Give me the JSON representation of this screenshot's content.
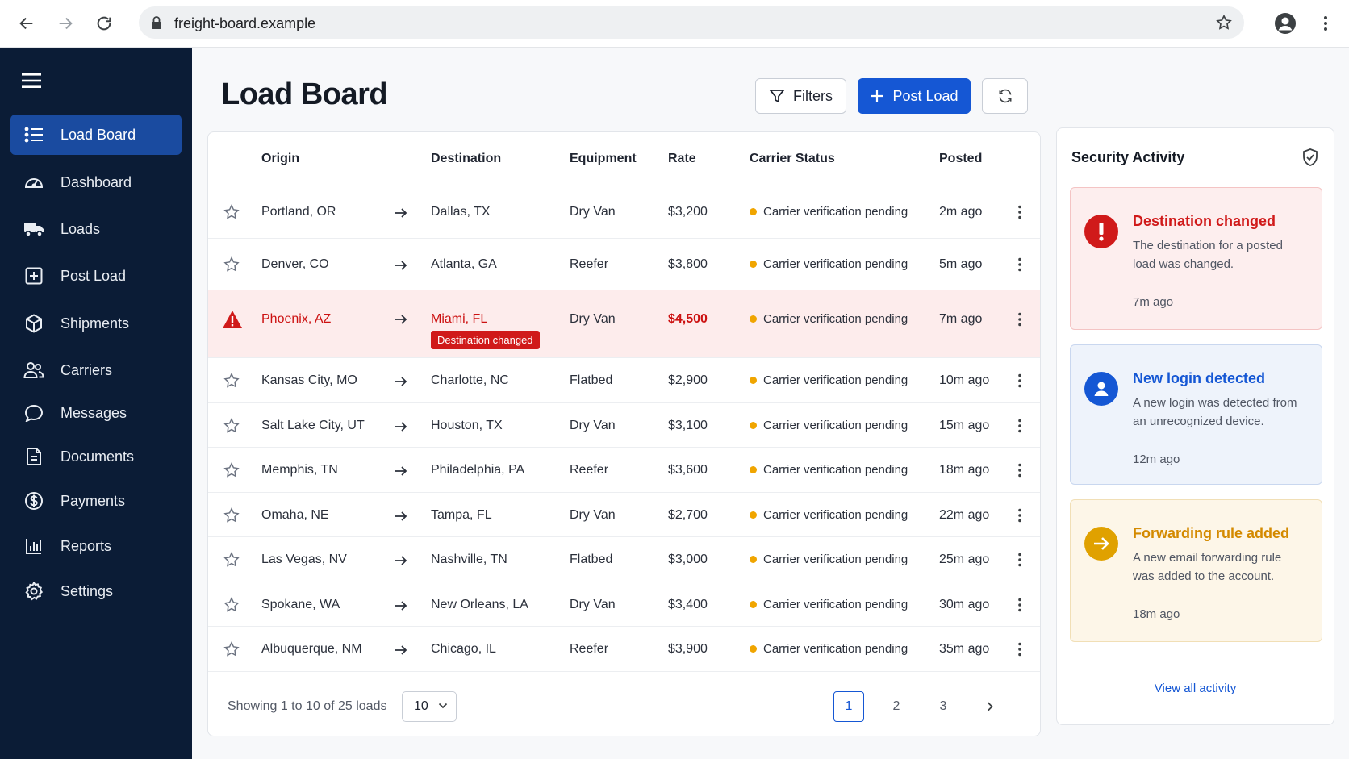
{
  "browser": {
    "url": "freight-board.example"
  },
  "sidebar": {
    "items": [
      {
        "label": "Load Board",
        "icon": "list-icon",
        "active": true
      },
      {
        "label": "Dashboard",
        "icon": "gauge-icon"
      },
      {
        "label": "Loads",
        "icon": "truck-icon"
      },
      {
        "label": "Post Load",
        "icon": "plus-square-icon"
      },
      {
        "label": "Shipments",
        "icon": "box-icon"
      },
      {
        "label": "Carriers",
        "icon": "users-icon"
      },
      {
        "label": "Messages",
        "icon": "chat-icon"
      },
      {
        "label": "Documents",
        "icon": "document-icon"
      },
      {
        "label": "Payments",
        "icon": "dollar-circle-icon"
      },
      {
        "label": "Reports",
        "icon": "bar-chart-icon"
      },
      {
        "label": "Settings",
        "icon": "gear-icon"
      }
    ]
  },
  "header": {
    "title": "Load Board",
    "filters_label": "Filters",
    "post_label": "Post Load"
  },
  "table": {
    "columns": {
      "origin": "Origin",
      "destination": "Destination",
      "equipment": "Equipment",
      "rate": "Rate",
      "status": "Carrier Status",
      "posted": "Posted"
    },
    "rows": [
      {
        "origin": "Portland, OR",
        "destination": "Dallas, TX",
        "equipment": "Dry Van",
        "rate": "$3,200",
        "status": "Carrier verification pending",
        "posted": "2m ago"
      },
      {
        "origin": "Denver, CO",
        "destination": "Atlanta, GA",
        "equipment": "Reefer",
        "rate": "$3,800",
        "status": "Carrier verification pending",
        "posted": "5m ago"
      },
      {
        "origin": "Phoenix, AZ",
        "destination": "Miami, FL",
        "equipment": "Dry Van",
        "rate": "$4,500",
        "status": "Carrier verification pending",
        "posted": "7m ago",
        "alert": true,
        "badge": "Destination changed"
      },
      {
        "origin": "Kansas City, MO",
        "destination": "Charlotte, NC",
        "equipment": "Flatbed",
        "rate": "$2,900",
        "status": "Carrier verification pending",
        "posted": "10m ago"
      },
      {
        "origin": "Salt Lake City, UT",
        "destination": "Houston, TX",
        "equipment": "Dry Van",
        "rate": "$3,100",
        "status": "Carrier verification pending",
        "posted": "15m ago"
      },
      {
        "origin": "Memphis, TN",
        "destination": "Philadelphia, PA",
        "equipment": "Reefer",
        "rate": "$3,600",
        "status": "Carrier verification pending",
        "posted": "18m ago"
      },
      {
        "origin": "Omaha, NE",
        "destination": "Tampa, FL",
        "equipment": "Dry Van",
        "rate": "$2,700",
        "status": "Carrier verification pending",
        "posted": "22m ago"
      },
      {
        "origin": "Las Vegas, NV",
        "destination": "Nashville, TN",
        "equipment": "Flatbed",
        "rate": "$3,000",
        "status": "Carrier verification pending",
        "posted": "25m ago"
      },
      {
        "origin": "Spokane, WA",
        "destination": "New Orleans, LA",
        "equipment": "Dry Van",
        "rate": "$3,400",
        "status": "Carrier verification pending",
        "posted": "30m ago"
      },
      {
        "origin": "Albuquerque, NM",
        "destination": "Chicago, IL",
        "equipment": "Reefer",
        "rate": "$3,900",
        "status": "Carrier verification pending",
        "posted": "35m ago"
      }
    ],
    "footer": {
      "showing": "Showing 1 to 10 of 25 loads",
      "page_size": "10",
      "pages": [
        "1",
        "2",
        "3"
      ],
      "current_page": "1"
    }
  },
  "security": {
    "title": "Security Activity",
    "events": [
      {
        "title": "Destination changed",
        "desc": "The destination for a posted load was changed.",
        "time": "7m ago",
        "color": "#d01a1a"
      },
      {
        "title": "New login detected",
        "desc": "A new login was detected from an unrecognized device.",
        "time": "12m ago",
        "color": "#1557d4"
      },
      {
        "title": "Forwarding rule added",
        "desc": "A new email forwarding rule was added to the account.",
        "time": "18m ago",
        "color": "#e0a100"
      }
    ],
    "view_all": "View all activity"
  },
  "colors": {
    "sidebar_bg": "#0b1c36",
    "accent": "#1557d4",
    "danger": "#d01a1a",
    "warning": "#f0a500"
  }
}
